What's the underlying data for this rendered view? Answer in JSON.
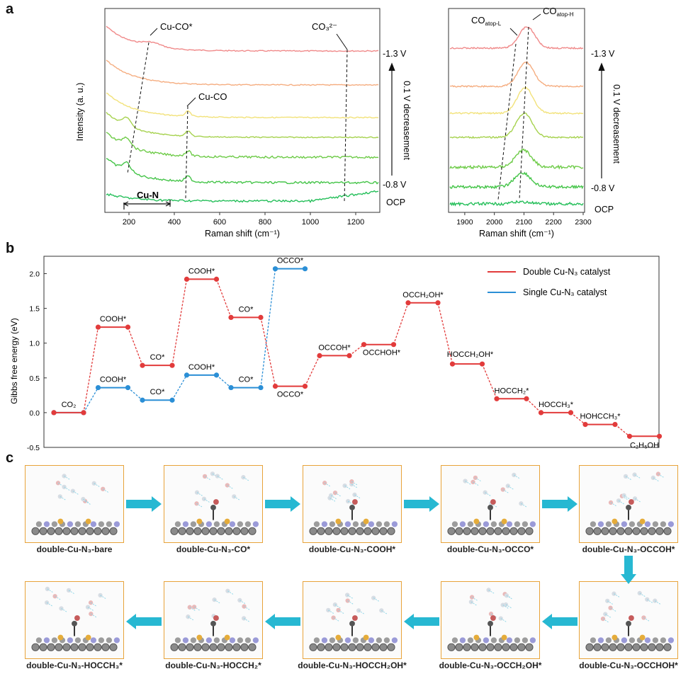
{
  "figure": {
    "panel_letters": [
      "a",
      "b",
      "c"
    ]
  },
  "panel_a": {
    "left": {
      "xlabel": "Raman shift (cm⁻¹)",
      "ylabel": "Intensity (a. u.)",
      "xlim": [
        100,
        1300
      ],
      "xticks": [
        200,
        400,
        600,
        800,
        1000,
        1200
      ],
      "trace_labels": [
        "-1.3 V",
        "-0.8 V",
        "OCP"
      ],
      "potential_note": "0.1 V decreasement",
      "annotations": {
        "cu_co_star": "Cu-CO*",
        "co3": "CO₃²⁻",
        "cu_co": "Cu-CO",
        "cu_n": "Cu-N"
      }
    },
    "right": {
      "xlabel": "Raman shift (cm⁻¹)",
      "xlim": [
        1850,
        2300
      ],
      "xticks": [
        1900,
        2000,
        2100,
        2200,
        2300
      ],
      "xticks_labels": [
        "1900",
        "2000",
        "2100",
        "2200",
        "2300"
      ],
      "trace_labels": [
        "-1.3 V",
        "-0.8 V",
        "OCP"
      ],
      "potential_note": "0.1 V decreasement",
      "annotations": {
        "co_atop_l": "COatop-L",
        "co_atop_h": "COatop-H"
      }
    },
    "trace_colors": [
      "#f08a8a",
      "#f5ad80",
      "#f2e27a",
      "#a6d24e",
      "#6ecb48",
      "#44c448",
      "#25bf5a"
    ]
  },
  "chart_data": {
    "type": "line",
    "ylabel": "Gibbs free energy (eV)",
    "ylim": [
      -0.5,
      2.25
    ],
    "yticks": [
      -0.5,
      0.0,
      0.5,
      1.0,
      1.5,
      2.0
    ],
    "ytick_labels": [
      "-0.5",
      "0.0",
      "0.5",
      "1.0",
      "1.5",
      "2.0"
    ],
    "legend_position": "top-right",
    "series": [
      {
        "name": "Double Cu-N₃ catalyst",
        "color": "#e23b3b",
        "steps": [
          {
            "label": "CO₂",
            "value": 0.0
          },
          {
            "label": "COOH*",
            "value": 1.23
          },
          {
            "label": "CO*",
            "value": 0.68
          },
          {
            "label": "COOH*",
            "value": 1.92
          },
          {
            "label": "CO*",
            "value": 1.37
          },
          {
            "label": "OCCO*",
            "value": 0.38
          },
          {
            "label": "OCCOH*",
            "value": 0.82
          },
          {
            "label": "OCCHOH*",
            "value": 0.98
          },
          {
            "label": "OCCH₂OH*",
            "value": 1.58
          },
          {
            "label": "HOCCH₂OH*",
            "value": 0.7
          },
          {
            "label": "HOCCH₂*",
            "value": 0.2
          },
          {
            "label": "HOCCH₃*",
            "value": 0.0
          },
          {
            "label": "HOHCCH₃*",
            "value": -0.17
          },
          {
            "label": "C₂H₅OH",
            "value": -0.34
          }
        ]
      },
      {
        "name": "Single Cu-N₃ catalyst",
        "color": "#2b8fd6",
        "steps": [
          {
            "label": "CO₂",
            "value": 0.0
          },
          {
            "label": "COOH*",
            "value": 0.36
          },
          {
            "label": "CO*",
            "value": 0.18
          },
          {
            "label": "COOH*",
            "value": 0.54
          },
          {
            "label": "CO*",
            "value": 0.36
          },
          {
            "label": "OCCO*",
            "value": 2.07
          }
        ]
      }
    ]
  },
  "panel_c": {
    "items": [
      {
        "label": "double-Cu-N₃-bare"
      },
      {
        "label": "double-Cu-N₃-CO*"
      },
      {
        "label": "double-Cu-N₃-COOH*"
      },
      {
        "label": "double-Cu-N₃-OCCO*"
      },
      {
        "label": "double-Cu-N₃-OCCOH*"
      },
      {
        "label": "double-Cu-N₃-OCCHOH*"
      },
      {
        "label": "double-Cu-N₃-OCCH₂OH*"
      },
      {
        "label": "double-Cu-N₃-HOCCH₂OH*"
      },
      {
        "label": "double-Cu-N₃-HOCCH₂*"
      },
      {
        "label": "double-Cu-N₃-HOCCH₃*"
      }
    ],
    "arrow_color": "#27b8d2"
  }
}
